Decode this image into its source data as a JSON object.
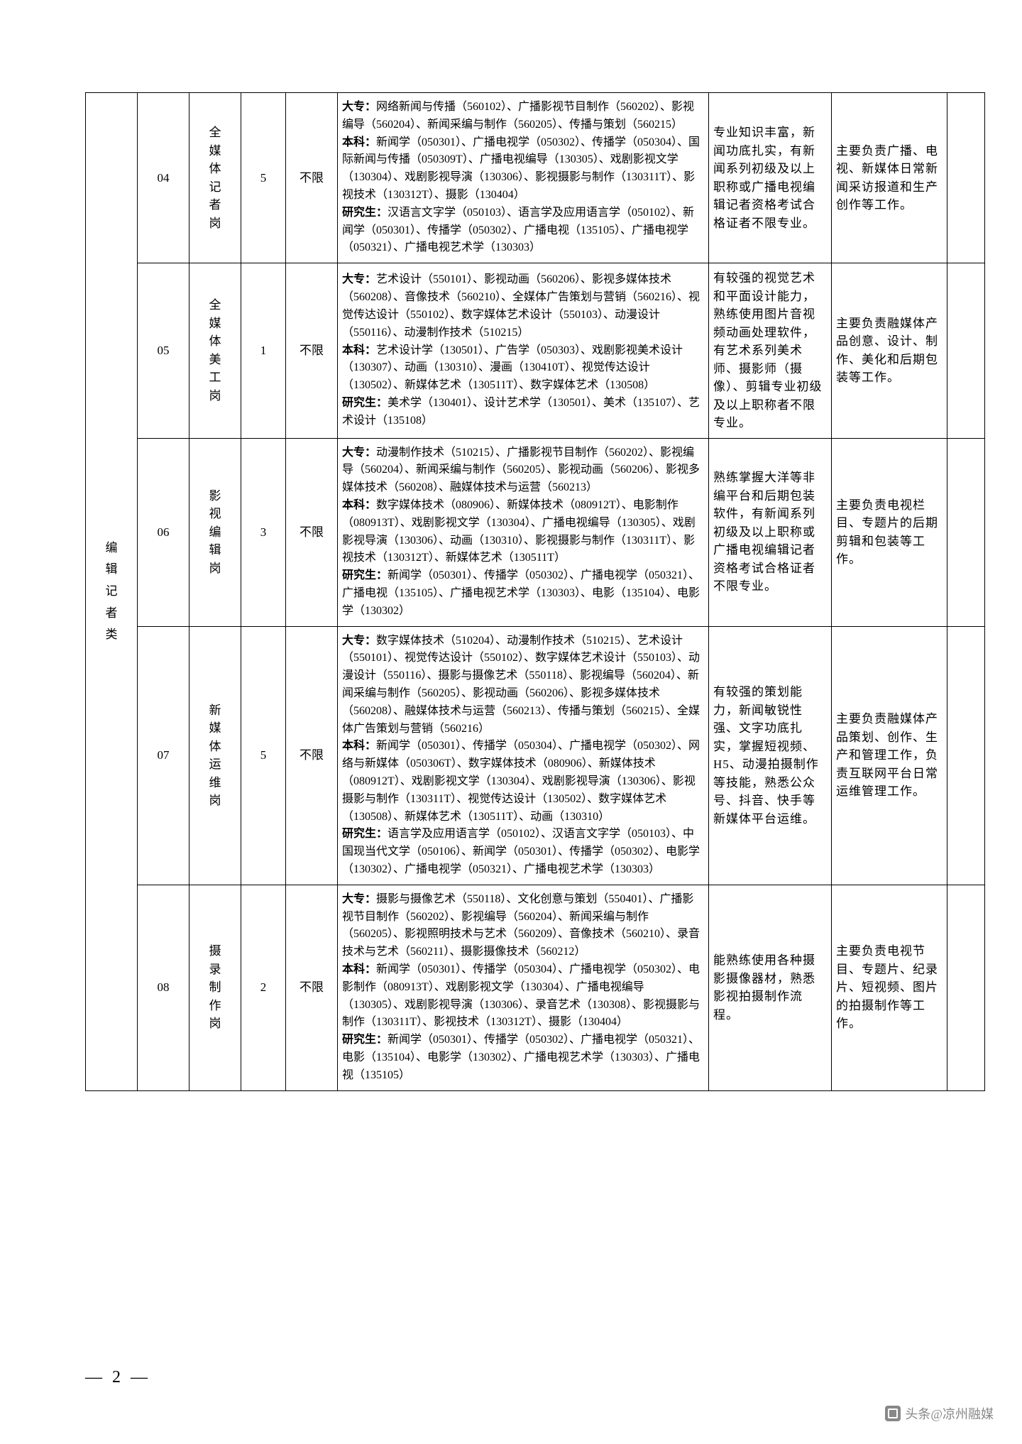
{
  "category": "编辑记者类",
  "page_number": "— 2 —",
  "watermark": "头条@凉州融媒",
  "rows": [
    {
      "code": "04",
      "post": "全媒体记者岗",
      "num": "5",
      "limit": "不限",
      "major": "<b>大专：</b>网络新闻与传播（560102）、广播影视节目制作（560202）、影视编导（560204）、新闻采编与制作（560205）、传播与策划（560215）<br><b>本科：</b>新闻学（050301）、广播电视学（050302）、传播学（050304）、国际新闻与传播（050309T）、广播电视编导（130305）、戏剧影视文学（130304）、戏剧影视导演（130306）、影视摄影与制作（130311T）、影视技术（130312T）、摄影（130404）<br><b>研究生：</b>汉语言文字学（050103）、语言学及应用语言学（050102）、新闻学（050301）、传播学（050302）、广播电视（135105）、广播电视学（050321）、广播电视艺术学（130303）",
      "req": "专业知识丰富，新闻功底扎实，有新闻系列初级及以上职称或广播电视编辑记者资格考试合格证者不限专业。",
      "duty": "主要负责广播、电视、新媒体日常新闻采访报道和生产创作等工作。"
    },
    {
      "code": "05",
      "post": "全媒体美工岗",
      "num": "1",
      "limit": "不限",
      "major": "<b>大专：</b>艺术设计（550101）、影视动画（560206）、影视多媒体技术（560208）、音像技术（560210）、全媒体广告策划与营销（560216）、视觉传达设计（550102）、数字媒体艺术设计（550103）、动漫设计（550116）、动漫制作技术（510215）<br><b>本科：</b>艺术设计学（130501）、广告学（050303）、戏剧影视美术设计（130307）、动画（130310）、漫画（130410T）、视觉传达设计（130502）、新媒体艺术（130511T）、数字媒体艺术（130508）<br><b>研究生：</b>美术学（130401）、设计艺术学（130501）、美术（135107）、艺术设计（135108）",
      "req": "有较强的视觉艺术和平面设计能力，熟练使用图片音视频动画处理软件，有艺术系列美术师、摄影师（摄像）、剪辑专业初级及以上职称者不限专业。",
      "duty": "主要负责融媒体产品创意、设计、制作、美化和后期包装等工作。"
    },
    {
      "code": "06",
      "post": "影视编辑岗",
      "num": "3",
      "limit": "不限",
      "major": "<b>大专：</b>动漫制作技术（510215）、广播影视节目制作（560202）、影视编导（560204）、新闻采编与制作（560205）、影视动画（560206）、影视多媒体技术（560208）、融媒体技术与运营（560213）<br><b>本科：</b>数字媒体技术（080906）、新媒体技术（080912T）、电影制作（080913T）、戏剧影视文学（130304）、广播电视编导（130305）、戏剧影视导演（130306）、动画（130310）、影视摄影与制作（130311T）、影视技术（130312T）、新媒体艺术（130511T）<br><b>研究生：</b>新闻学（050301）、传播学（050302）、广播电视学（050321）、广播电视（135105）、广播电视艺术学（130303）、电影（135104）、电影学（130302）",
      "req": "熟练掌握大洋等非编平台和后期包装软件，有新闻系列初级及以上职称或广播电视编辑记者资格考试合格证者不限专业。",
      "duty": "主要负责电视栏目、专题片的后期剪辑和包装等工作。"
    },
    {
      "code": "07",
      "post": "新媒体运维岗",
      "num": "5",
      "limit": "不限",
      "major": "<b>大专：</b>数字媒体技术（510204）、动漫制作技术（510215）、艺术设计（550101）、视觉传达设计（550102）、数字媒体艺术设计（550103）、动漫设计（550116）、摄影与摄像艺术（550118）、影视编导（560204）、新闻采编与制作（560205）、影视动画（560206）、影视多媒体技术（560208）、融媒体技术与运营（560213）、传播与策划（560215）、全媒体广告策划与营销（560216）<br><b>本科：</b>新闻学（050301）、传播学（050304）、广播电视学（050302）、网络与新媒体（050306T）、数字媒体技术（080906）、新媒体技术（080912T）、戏剧影视文学（130304）、戏剧影视导演（130306）、影视摄影与制作（130311T）、视觉传达设计（130502）、数字媒体艺术（130508）、新媒体艺术（130511T）、动画（130310）<br><b>研究生：</b>语言学及应用语言学（050102）、汉语言文字学（050103）、中国现当代文学（050106）、新闻学（050301）、传播学（050302）、电影学（130302）、广播电视学（050321）、广播电视艺术学（130303）",
      "req": "有较强的策划能力，新闻敏锐性强、文字功底扎实，掌握短视频、H5、动漫拍摄制作等技能，熟悉公众号、抖音、快手等新媒体平台运维。",
      "duty": "主要负责融媒体产品策划、创作、生产和管理工作，负责互联网平台日常运维管理工作。"
    },
    {
      "code": "08",
      "post": "摄录制作岗",
      "num": "2",
      "limit": "不限",
      "major": "<b>大专：</b>摄影与摄像艺术（550118）、文化创意与策划（550401）、广播影视节目制作（560202）、影视编导（560204）、新闻采编与制作（560205）、影视照明技术与艺术（560209）、音像技术（560210）、录音技术与艺术（560211）、摄影摄像技术（560212）<br><b>本科：</b>新闻学（050301）、传播学（050304）、广播电视学（050302）、电影制作（080913T）、戏剧影视文学（130304）、广播电视编导（130305）、戏剧影视导演（130306）、录音艺术（130308）、影视摄影与制作（130311T）、影视技术（130312T）、摄影（130404）<br><b>研究生：</b>新闻学（050301）、传播学（050302）、广播电视学（050321）、电影（135104）、电影学（130302）、广播电视艺术学（130303）、广播电视（135105）",
      "req": "能熟练使用各种摄影摄像器材，熟悉影视拍摄制作流程。",
      "duty": "主要负责电视节目、专题片、纪录片、短视频、图片的拍摄制作等工作。"
    }
  ]
}
